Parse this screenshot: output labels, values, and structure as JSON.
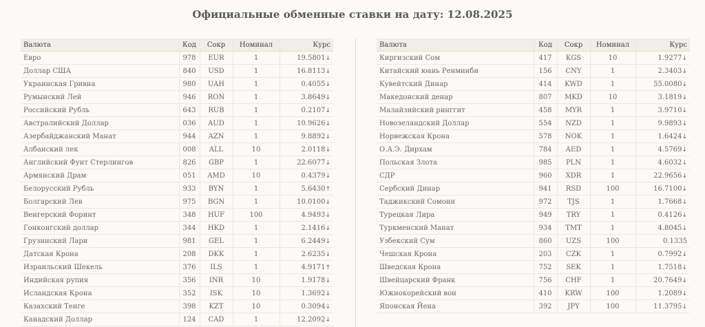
{
  "title": "Официальные обменные ставки на дату: 12.08.2025",
  "headers": {
    "name": "Валюта",
    "code": "Код",
    "abbr": "Сокр",
    "nominal": "Номинал",
    "rate": "Курс"
  },
  "colors": {
    "down": "#e0592a",
    "up": "#2fa35a"
  },
  "left_rows": [
    {
      "name": "Евро",
      "code": "978",
      "abbr": "EUR",
      "nominal": "1",
      "rate": "19.5801",
      "trend": "down"
    },
    {
      "name": "Доллар США",
      "code": "840",
      "abbr": "USD",
      "nominal": "1",
      "rate": "16.8113",
      "trend": "down"
    },
    {
      "name": "Украинская Гривна",
      "code": "980",
      "abbr": "UAH",
      "nominal": "1",
      "rate": "0.4055",
      "trend": "down"
    },
    {
      "name": "Румынский Лей",
      "code": "946",
      "abbr": "RON",
      "nominal": "1",
      "rate": "3.8649",
      "trend": "down"
    },
    {
      "name": "Российский Рубль",
      "code": "643",
      "abbr": "RUB",
      "nominal": "1",
      "rate": "0.2107",
      "trend": "down"
    },
    {
      "name": "Австралийский Доллар",
      "code": "036",
      "abbr": "AUD",
      "nominal": "1",
      "rate": "10.9626",
      "trend": "down"
    },
    {
      "name": "Азербайджанский Манат",
      "code": "944",
      "abbr": "AZN",
      "nominal": "1",
      "rate": "9.8892",
      "trend": "down"
    },
    {
      "name": "Албанский лек",
      "code": "008",
      "abbr": "ALL",
      "nominal": "10",
      "rate": "2.0118",
      "trend": "down"
    },
    {
      "name": "Английский Фунт Стерлингов",
      "code": "826",
      "abbr": "GBP",
      "nominal": "1",
      "rate": "22.6077",
      "trend": "down"
    },
    {
      "name": "Армянский Драм",
      "code": "051",
      "abbr": "AMD",
      "nominal": "10",
      "rate": "0.4379",
      "trend": "down"
    },
    {
      "name": "Белорусский Рубль",
      "code": "933",
      "abbr": "BYN",
      "nominal": "1",
      "rate": "5.6430",
      "trend": "up"
    },
    {
      "name": "Болгарский Лев",
      "code": "975",
      "abbr": "BGN",
      "nominal": "1",
      "rate": "10.0100",
      "trend": "down"
    },
    {
      "name": "Венгерский Форинт",
      "code": "348",
      "abbr": "HUF",
      "nominal": "100",
      "rate": "4.9493",
      "trend": "down"
    },
    {
      "name": "Гонконгский доллар",
      "code": "344",
      "abbr": "HKD",
      "nominal": "1",
      "rate": "2.1416",
      "trend": "down"
    },
    {
      "name": "Грузинский Лари",
      "code": "981",
      "abbr": "GEL",
      "nominal": "1",
      "rate": "6.2449",
      "trend": "down"
    },
    {
      "name": "Датская Крона",
      "code": "208",
      "abbr": "DKK",
      "nominal": "1",
      "rate": "2.6235",
      "trend": "down"
    },
    {
      "name": "Израильский Шекель",
      "code": "376",
      "abbr": "ILS",
      "nominal": "1",
      "rate": "4.9171",
      "trend": "up"
    },
    {
      "name": "Индийская рупия",
      "code": "356",
      "abbr": "INR",
      "nominal": "10",
      "rate": "1.9178",
      "trend": "down"
    },
    {
      "name": "Исландская Крона",
      "code": "352",
      "abbr": "ISK",
      "nominal": "10",
      "rate": "1.3692",
      "trend": "down"
    },
    {
      "name": "Казахский Тенге",
      "code": "398",
      "abbr": "KZT",
      "nominal": "10",
      "rate": "0.3094",
      "trend": "down"
    },
    {
      "name": "Канадский Доллар",
      "code": "124",
      "abbr": "CAD",
      "nominal": "1",
      "rate": "12.2092",
      "trend": "down"
    }
  ],
  "right_rows": [
    {
      "name": "Киргизский Сом",
      "code": "417",
      "abbr": "KGS",
      "nominal": "10",
      "rate": "1.9277",
      "trend": "down"
    },
    {
      "name": "Китайский юань Ренминби",
      "code": "156",
      "abbr": "CNY",
      "nominal": "1",
      "rate": "2.3403",
      "trend": "down"
    },
    {
      "name": "Кувейтский Динар",
      "code": "414",
      "abbr": "KWD",
      "nominal": "1",
      "rate": "55.0080",
      "trend": "down"
    },
    {
      "name": "Македонский денар",
      "code": "807",
      "abbr": "MKD",
      "nominal": "10",
      "rate": "3.1819",
      "trend": "down"
    },
    {
      "name": "Малайзийский ринггит",
      "code": "458",
      "abbr": "MYR",
      "nominal": "1",
      "rate": "3.9710",
      "trend": "down"
    },
    {
      "name": "Новозеландский Доллар",
      "code": "554",
      "abbr": "NZD",
      "nominal": "1",
      "rate": "9.9893",
      "trend": "down"
    },
    {
      "name": "Норвежская Крона",
      "code": "578",
      "abbr": "NOK",
      "nominal": "1",
      "rate": "1.6424",
      "trend": "down"
    },
    {
      "name": "О.А.Э. Дирхам",
      "code": "784",
      "abbr": "AED",
      "nominal": "1",
      "rate": "4.5769",
      "trend": "down"
    },
    {
      "name": "Польская Злота",
      "code": "985",
      "abbr": "PLN",
      "nominal": "1",
      "rate": "4.6032",
      "trend": "down"
    },
    {
      "name": "СДР",
      "code": "960",
      "abbr": "XDR",
      "nominal": "1",
      "rate": "22.9656",
      "trend": "down"
    },
    {
      "name": "Сербский Динар",
      "code": "941",
      "abbr": "RSD",
      "nominal": "100",
      "rate": "16.7100",
      "trend": "down"
    },
    {
      "name": "Таджикский Сомони",
      "code": "972",
      "abbr": "TJS",
      "nominal": "1",
      "rate": "1.7668",
      "trend": "down"
    },
    {
      "name": "Турецкая Лира",
      "code": "949",
      "abbr": "TRY",
      "nominal": "1",
      "rate": "0.4126",
      "trend": "down"
    },
    {
      "name": "Туркменский Манат",
      "code": "934",
      "abbr": "TMT",
      "nominal": "1",
      "rate": "4.8045",
      "trend": "down"
    },
    {
      "name": "Узбекский Сум",
      "code": "860",
      "abbr": "UZS",
      "nominal": "100",
      "rate": "0.1335",
      "trend": "flat"
    },
    {
      "name": "Чешская Крона",
      "code": "203",
      "abbr": "CZK",
      "nominal": "1",
      "rate": "0.7992",
      "trend": "down"
    },
    {
      "name": "Шведская Крона",
      "code": "752",
      "abbr": "SEK",
      "nominal": "1",
      "rate": "1.7518",
      "trend": "down"
    },
    {
      "name": "Швейцарский Франк",
      "code": "756",
      "abbr": "CHF",
      "nominal": "1",
      "rate": "20.7649",
      "trend": "down"
    },
    {
      "name": "Южнокорейский вон",
      "code": "410",
      "abbr": "KRW",
      "nominal": "100",
      "rate": "1.2089",
      "trend": "down"
    },
    {
      "name": "Японская Йена",
      "code": "392",
      "abbr": "JPY",
      "nominal": "100",
      "rate": "11.3795",
      "trend": "down"
    }
  ]
}
